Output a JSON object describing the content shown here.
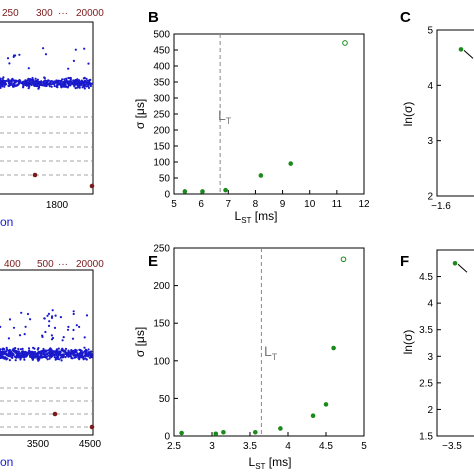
{
  "panels": {
    "A": {
      "top_ticks": [
        "250",
        "300",
        "···",
        "20000"
      ],
      "bottom_ticks": [
        "1800"
      ],
      "xlabel": "on"
    },
    "B": {
      "letter": "B",
      "xlabel": "L",
      "xlabel_sub": "ST",
      "xlabel_unit": " [ms]",
      "ylabel": "σ [μs]",
      "lt_label": "L",
      "lt_sub": "T",
      "xticks": [
        "5",
        "6",
        "7",
        "8",
        "9",
        "10",
        "11",
        "12"
      ],
      "yticks": [
        "0",
        "50",
        "100",
        "150",
        "200",
        "250",
        "300",
        "350",
        "400",
        "450",
        "500"
      ]
    },
    "C": {
      "letter": "C",
      "ylabel": "ln(σ)",
      "yticks": [
        "2",
        "3",
        "4",
        "5"
      ],
      "xticks": [
        "−1.6"
      ]
    },
    "D": {
      "top_ticks": [
        "400",
        "500",
        "···",
        "20000"
      ],
      "bottom_ticks": [
        "3500",
        "4500"
      ],
      "xlabel": "on"
    },
    "E": {
      "letter": "E",
      "xlabel": "L",
      "xlabel_sub": "ST",
      "xlabel_unit": " [ms]",
      "ylabel": "σ [μs]",
      "lt_label": "L",
      "lt_sub": "T",
      "xticks": [
        "2.5",
        "3",
        "3.5",
        "4",
        "4.5",
        "5"
      ],
      "yticks": [
        "0",
        "50",
        "100",
        "150",
        "200",
        "250"
      ]
    },
    "F": {
      "letter": "F",
      "ylabel": "ln(σ)",
      "yticks": [
        "1.5",
        "2",
        "2.5",
        "3",
        "3.5",
        "4",
        "4.5"
      ],
      "xticks": [
        "−3.5"
      ]
    }
  },
  "colors": {
    "green": "#1a8a1a",
    "blue": "#1a1acc",
    "darkred": "#7a1a1a",
    "dashed": "#888888"
  },
  "chart_data": [
    {
      "type": "scatter",
      "panel": "B",
      "xlabel": "LST [ms]",
      "ylabel": "σ [μs]",
      "xlim": [
        5,
        12
      ],
      "ylim": [
        0,
        500
      ],
      "threshold_LT": 6.7,
      "points": [
        {
          "x": 5.4,
          "y": 8,
          "filled": true
        },
        {
          "x": 6.05,
          "y": 8,
          "filled": true
        },
        {
          "x": 6.9,
          "y": 12,
          "filled": true
        },
        {
          "x": 8.2,
          "y": 58,
          "filled": true
        },
        {
          "x": 9.3,
          "y": 95,
          "filled": true
        },
        {
          "x": 11.3,
          "y": 472,
          "filled": false
        }
      ]
    },
    {
      "type": "scatter",
      "panel": "E",
      "xlabel": "LST [ms]",
      "ylabel": "σ [μs]",
      "xlim": [
        2.5,
        5
      ],
      "ylim": [
        0,
        250
      ],
      "threshold_LT": 3.65,
      "points": [
        {
          "x": 2.6,
          "y": 4,
          "filled": true
        },
        {
          "x": 3.05,
          "y": 3,
          "filled": true
        },
        {
          "x": 3.15,
          "y": 5,
          "filled": true
        },
        {
          "x": 3.57,
          "y": 5,
          "filled": true
        },
        {
          "x": 3.9,
          "y": 10,
          "filled": true
        },
        {
          "x": 4.33,
          "y": 27,
          "filled": true
        },
        {
          "x": 4.5,
          "y": 42,
          "filled": true
        },
        {
          "x": 4.6,
          "y": 117,
          "filled": true
        },
        {
          "x": 4.73,
          "y": 235,
          "filled": false
        }
      ]
    },
    {
      "type": "line",
      "panel": "C",
      "ylabel": "ln(σ)",
      "ylim": [
        2,
        5
      ],
      "points": [
        {
          "y": 4.65
        }
      ]
    },
    {
      "type": "line",
      "panel": "F",
      "ylabel": "ln(σ)",
      "ylim": [
        1.5,
        5
      ],
      "points": [
        {
          "y": 4.75
        }
      ]
    }
  ]
}
